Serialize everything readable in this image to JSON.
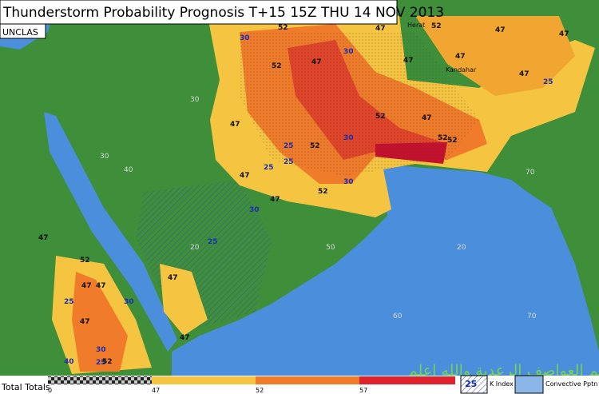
{
  "header": {
    "title": "Thunderstorm Probability Prognosis T+15 15Z THU 14 NOV 2013",
    "classification": "UNCLAS"
  },
  "places": [
    "Herat",
    "Kandahar"
  ],
  "contour_labels": [
    "52",
    "52",
    "47",
    "47",
    "52",
    "47",
    "30",
    "47",
    "52",
    "52",
    "47",
    "25",
    "52",
    "47",
    "52",
    "47",
    "47",
    "47",
    "47",
    "30",
    "30",
    "30",
    "25",
    "25",
    "25",
    "52",
    "47",
    "47",
    "52",
    "25",
    "47",
    "30",
    "47",
    "30",
    "25",
    "47",
    "47",
    "47",
    "40",
    "52",
    "30",
    "25"
  ],
  "grid_labels": [
    "30",
    "40",
    "20",
    "20",
    "50",
    "60",
    "70",
    "70",
    "30"
  ],
  "watermark": "دعم العواصف الرعدية والله اعلم",
  "legend": {
    "title": "Total Totals",
    "scale_labels": [
      "0",
      "47",
      "52",
      "57"
    ],
    "k_index_value": "25",
    "k_index_label": "K Index",
    "pptn_label": "Convective Pptn"
  }
}
